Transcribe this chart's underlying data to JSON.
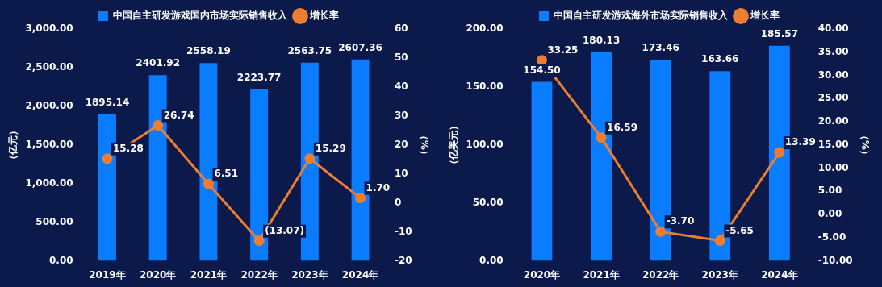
{
  "chart_data": [
    {
      "type": "bar",
      "categories": [
        "2019年",
        "2020年",
        "2021年",
        "2022年",
        "2023年",
        "2024年"
      ],
      "ylabel": "（亿元）",
      "y2label": "（%）",
      "legend": "top",
      "marker": "circle",
      "ylim": [
        0,
        3000
      ],
      "yticks": [
        {
          "value": 0,
          "label": "0.00"
        },
        {
          "value": 500,
          "label": "500.00"
        },
        {
          "value": 1000,
          "label": "1,000.00"
        },
        {
          "value": 1500,
          "label": "1,500.00"
        },
        {
          "value": 2000,
          "label": "2,000.00"
        },
        {
          "value": 2500,
          "label": "2,500.00"
        },
        {
          "value": 3000,
          "label": "3,000.00"
        }
      ],
      "y2lim": [
        -20,
        60
      ],
      "y2ticks": [
        -20,
        -10,
        0,
        10,
        20,
        30,
        40,
        50,
        60
      ],
      "series": [
        {
          "name": "中国自主研发游戏国内市场实际销售收入",
          "color": "#0a7cff",
          "values": [
            1895.14,
            2401.92,
            2558.19,
            2223.77,
            2563.75,
            2607.36
          ],
          "value_labels": [
            "1895.14",
            "2401.92",
            "2558.19",
            "2223.77",
            "2563.75",
            "2607.36"
          ]
        },
        {
          "name": "增长率",
          "type": "line",
          "axis": "y2",
          "color": "#ed7d31",
          "values": [
            15.28,
            26.74,
            6.51,
            -13.07,
            15.29,
            1.7
          ],
          "value_labels": [
            "15.28",
            "26.74",
            "6.51",
            "(13.07)",
            "15.29",
            "1.70"
          ]
        }
      ]
    },
    {
      "type": "bar",
      "categories": [
        "2020年",
        "2021年",
        "2022年",
        "2023年",
        "2024年"
      ],
      "ylabel": "（亿美元）",
      "y2label": "（%）",
      "legend": "top",
      "marker": "circle",
      "ylim": [
        0,
        200
      ],
      "yticks": [
        {
          "value": 0,
          "label": "0.00"
        },
        {
          "value": 50,
          "label": "50.00"
        },
        {
          "value": 100,
          "label": "100.00"
        },
        {
          "value": 150,
          "label": "150.00"
        },
        {
          "value": 200,
          "label": "200.00"
        }
      ],
      "y2lim": [
        -10,
        40
      ],
      "y2ticks": [
        {
          "value": -10,
          "label": "-10.00"
        },
        {
          "value": -5,
          "label": "-5.00"
        },
        {
          "value": 0,
          "label": "0.00"
        },
        {
          "value": 5,
          "label": "5.00"
        },
        {
          "value": 10,
          "label": "10.00"
        },
        {
          "value": 15,
          "label": "15.00"
        },
        {
          "value": 20,
          "label": "20.00"
        },
        {
          "value": 25,
          "label": "25.00"
        },
        {
          "value": 30,
          "label": "30.00"
        },
        {
          "value": 35,
          "label": "35.00"
        },
        {
          "value": 40,
          "label": "40.00"
        }
      ],
      "series": [
        {
          "name": "中国自主研发游戏海外市场实际销售收入",
          "color": "#0a7cff",
          "values": [
            154.5,
            180.13,
            173.46,
            163.66,
            185.57
          ],
          "value_labels": [
            "154.50",
            "180.13",
            "173.46",
            "163.66",
            "185.57"
          ]
        },
        {
          "name": "增长率",
          "type": "line",
          "axis": "y2",
          "color": "#ed7d31",
          "values": [
            33.25,
            16.59,
            -3.7,
            -5.65,
            13.39
          ],
          "value_labels": [
            "33.25",
            "16.59",
            "-3.70",
            "-5.65",
            "13.39"
          ]
        }
      ]
    }
  ]
}
